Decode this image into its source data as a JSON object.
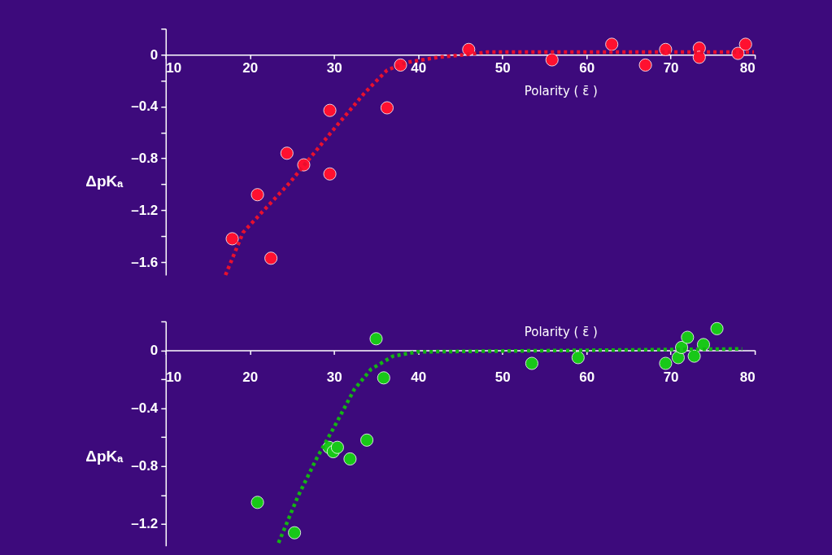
{
  "chart_data": [
    {
      "type": "scatter",
      "xlabel": "Polarity ( ε̄ )",
      "ylabel": "ΔpKₐ",
      "xlim": [
        10,
        80
      ],
      "xticks": [
        10,
        20,
        30,
        40,
        50,
        60,
        70,
        80
      ],
      "ylim": [
        -1.7,
        0.2
      ],
      "yticks": [
        {
          "value": 0.2,
          "label": null
        },
        0,
        {
          "value": -0.2,
          "label": null
        },
        {
          "value": -0.4,
          "label": "–0.4"
        },
        {
          "value": -0.6,
          "label": null
        },
        {
          "value": -0.8,
          "label": "–0.8"
        },
        {
          "value": -1.0,
          "label": null
        },
        {
          "value": -1.2,
          "label": "–1.2"
        },
        {
          "value": -1.4,
          "label": null
        },
        {
          "value": -1.6,
          "label": "–1.6"
        }
      ],
      "grid": false,
      "series": [
        {
          "marker": "circle",
          "color": "#ff1030",
          "x": [
            17.9,
            20.9,
            22.5,
            24.4,
            26.4,
            29.5,
            29.5,
            36.3,
            37.9,
            46.0,
            55.9,
            63.0,
            67.0,
            69.4,
            73.4,
            73.4,
            78.0,
            78.9
          ],
          "values": [
            -1.42,
            -1.08,
            -1.57,
            -0.76,
            -0.85,
            -0.43,
            -0.92,
            -0.41,
            -0.08,
            0.04,
            -0.04,
            0.08,
            -0.08,
            0.04,
            0.05,
            -0.02,
            0.01,
            0.08
          ]
        },
        {
          "type": "line",
          "line_style": "dotted",
          "marker": "none",
          "color": "#e8102e",
          "x": [
            17.1,
            19.2,
            24.7,
            29.9,
            33.7,
            36.3,
            38.6,
            40.5,
            42.4,
            45.6,
            48.2,
            79.9
          ],
          "values": [
            -1.7,
            -1.37,
            -0.99,
            -0.58,
            -0.29,
            -0.12,
            -0.06,
            -0.04,
            -0.02,
            0.0,
            0.02,
            0.02
          ]
        }
      ]
    },
    {
      "type": "scatter",
      "xlabel": "Polarity ( ε̄ )",
      "ylabel": "ΔpKₐ",
      "xlim": [
        10,
        80
      ],
      "xticks": [
        10,
        20,
        30,
        40,
        50,
        60,
        70,
        80
      ],
      "ylim": [
        -1.35,
        0.2
      ],
      "yticks": [
        {
          "value": 0.2,
          "label": null
        },
        0,
        {
          "value": -0.2,
          "label": null
        },
        {
          "value": -0.4,
          "label": "–0.4"
        },
        {
          "value": -0.6,
          "label": null
        },
        {
          "value": -0.8,
          "label": "–0.8"
        },
        {
          "value": -1.0,
          "label": null
        },
        {
          "value": -1.2,
          "label": "–1.2"
        }
      ],
      "grid": false,
      "series": [
        {
          "marker": "circle",
          "color": "#18c818",
          "x": [
            20.9,
            25.3,
            29.4,
            29.9,
            30.4,
            31.9,
            33.9,
            35.0,
            35.9,
            53.5,
            59.0,
            69.4,
            70.9,
            71.3,
            72.0,
            72.8,
            73.9,
            75.5
          ],
          "values": [
            -1.05,
            -1.26,
            -0.67,
            -0.7,
            -0.67,
            -0.75,
            -0.62,
            0.08,
            -0.19,
            -0.09,
            -0.05,
            -0.09,
            -0.05,
            0.02,
            0.09,
            -0.04,
            0.04,
            0.15
          ]
        },
        {
          "type": "line",
          "line_style": "dotted",
          "marker": "none",
          "color": "#14b414",
          "x": [
            23.4,
            25.7,
            27.9,
            30.2,
            32.4,
            34.4,
            37.0,
            39.9,
            78.5
          ],
          "values": [
            -1.33,
            -1.01,
            -0.75,
            -0.51,
            -0.27,
            -0.13,
            -0.04,
            -0.01,
            0.01
          ]
        }
      ]
    }
  ]
}
